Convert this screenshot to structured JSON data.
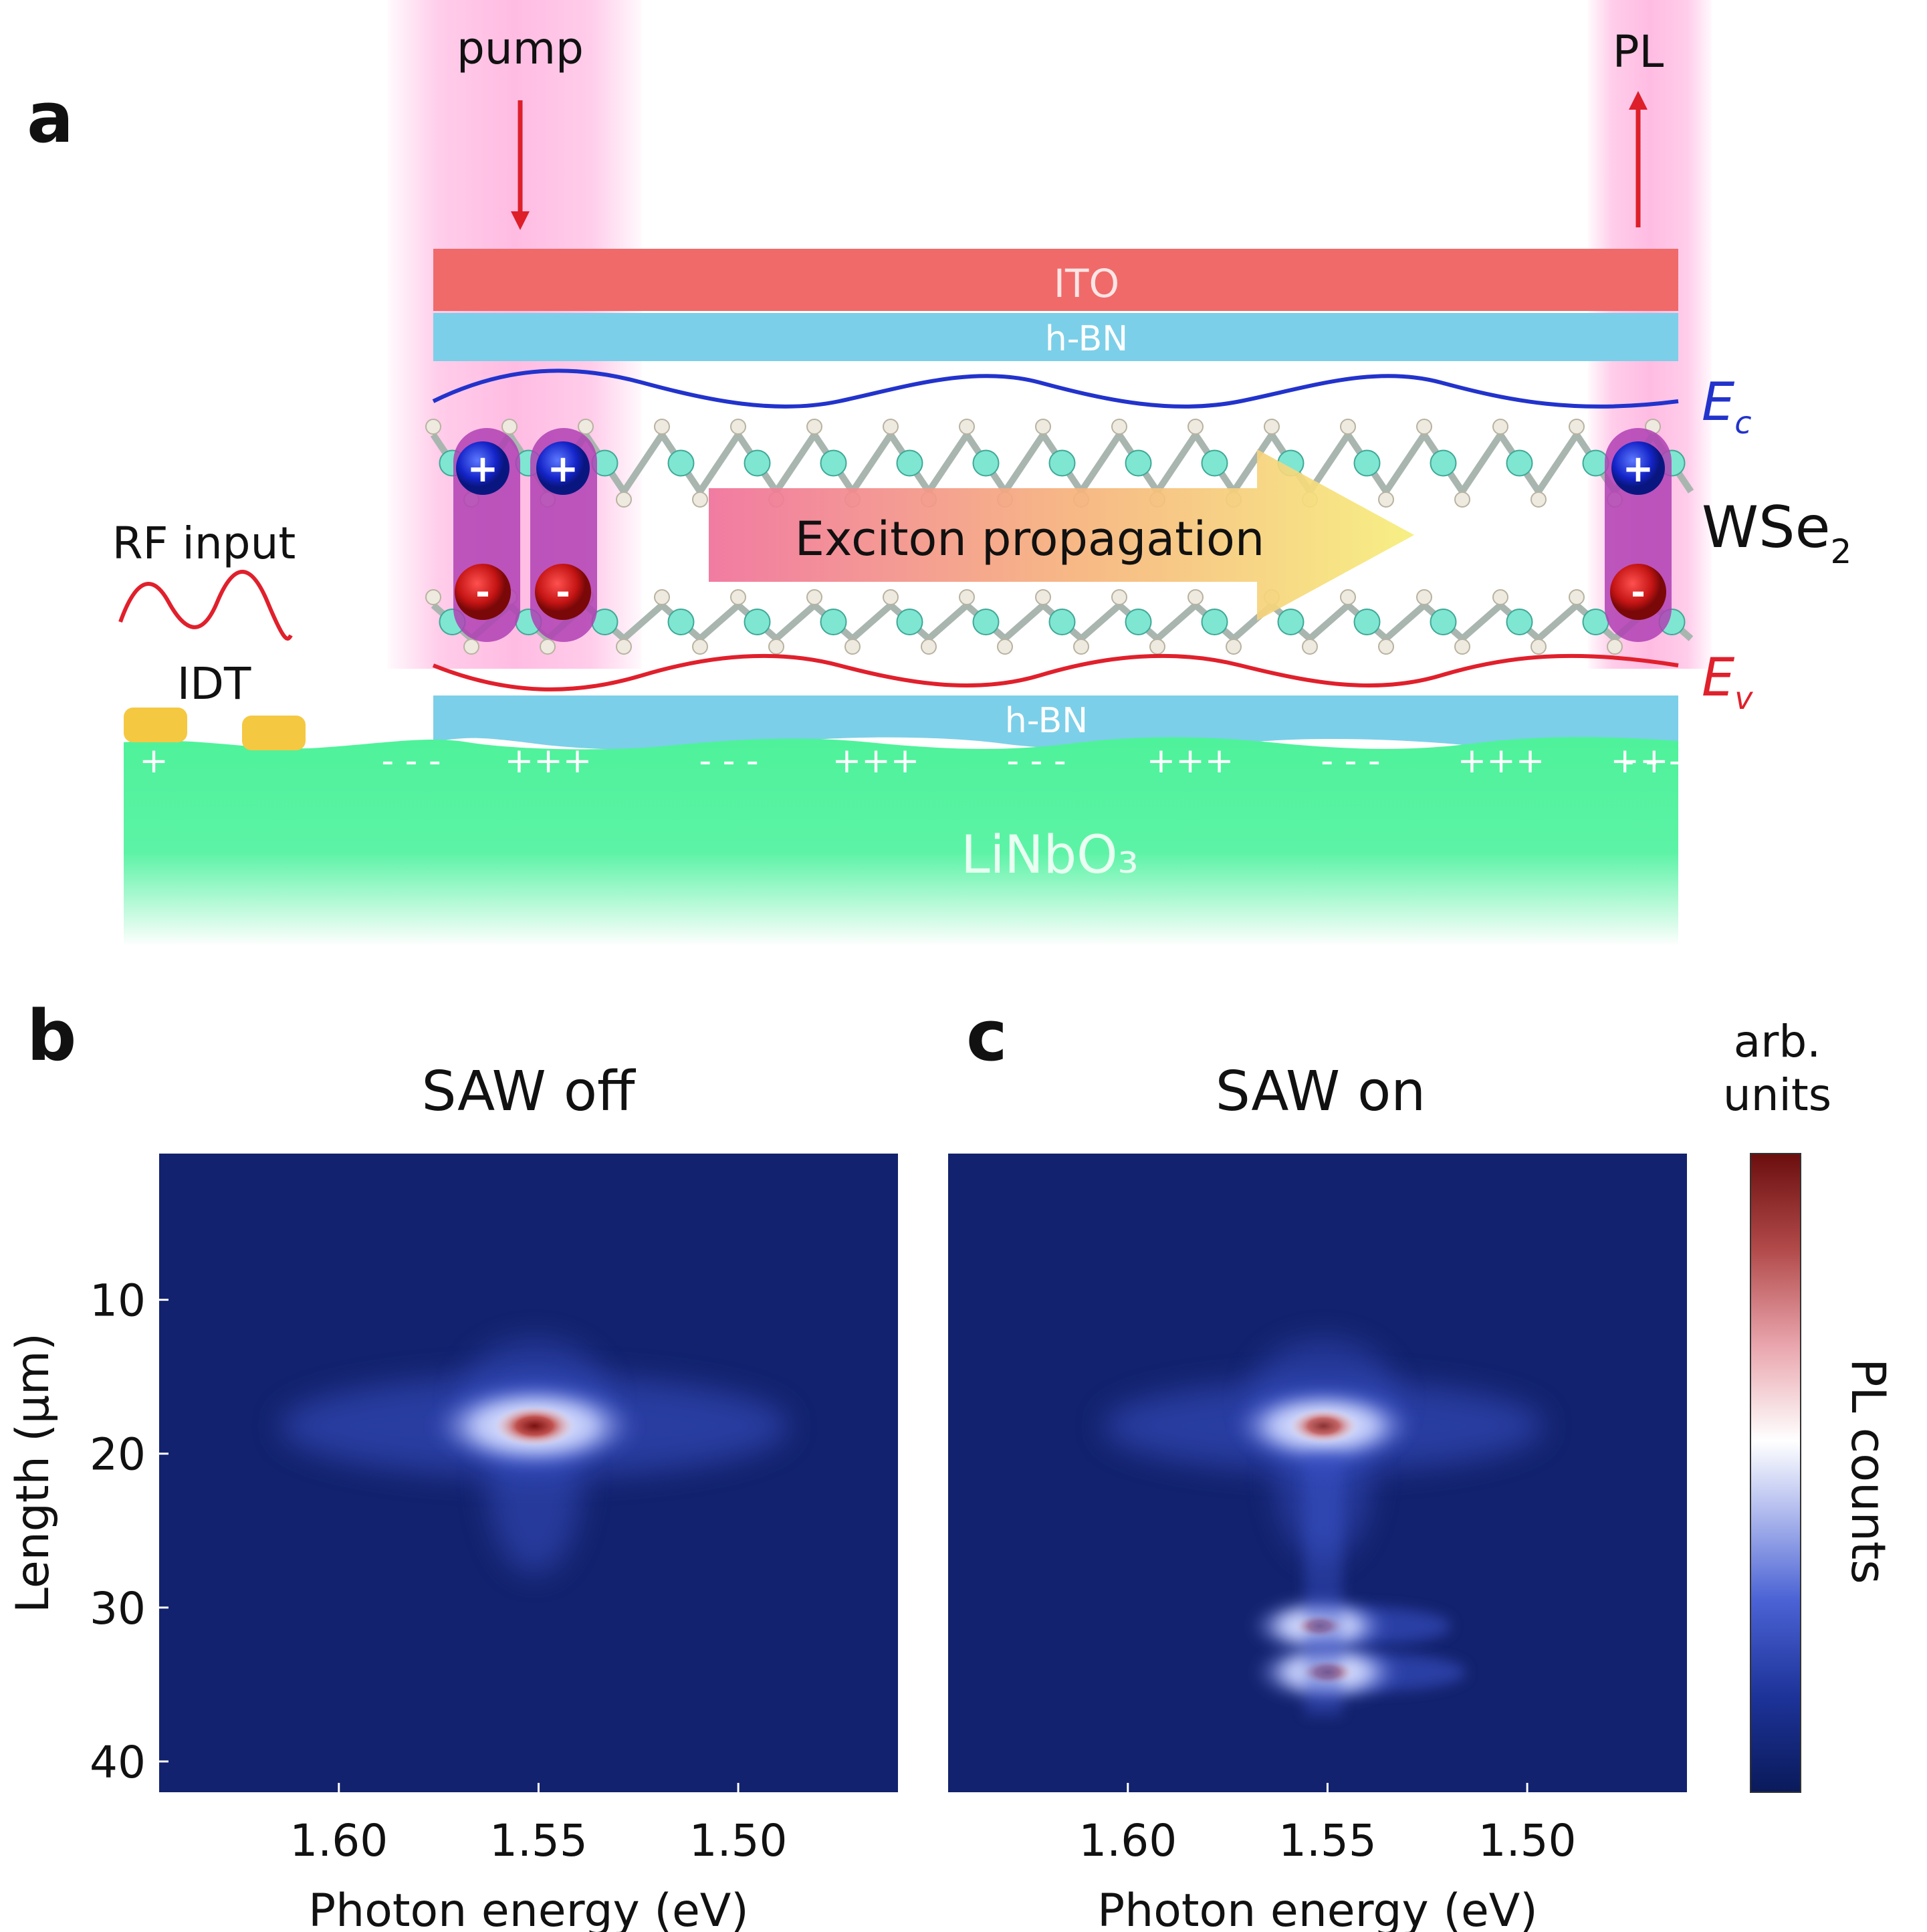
{
  "panel_a": {
    "label": "a",
    "pump": "pump",
    "pl": "PL",
    "ito": "ITO",
    "hbn_top": "h-BN",
    "hbn_bottom": "h-BN",
    "ec_main": "E",
    "ec_sub": "c",
    "ev_main": "E",
    "ev_sub": "v",
    "wse2_main": "WSe",
    "wse2_sub": "2",
    "propagation": "Exciton propagation",
    "rf_input": "RF input",
    "idt": "IDT",
    "substrate": "LiNbO₃",
    "hole_sign": "+",
    "electron_sign": "-",
    "charges": [
      "+",
      "- - -",
      "+++",
      "- - -",
      "+++",
      "- - -",
      "+++",
      "- - -",
      "+++",
      "- - -",
      "++"
    ]
  },
  "panel_b": {
    "label": "b",
    "title": "SAW off"
  },
  "panel_c": {
    "label": "c",
    "title": "SAW on"
  },
  "colorbar": {
    "units_line1": "arb.",
    "units_line2": "units",
    "label": "PL counts"
  },
  "colors": {
    "ito": "#f06a6a",
    "hbn": "#7ccfe8",
    "substrate": "#4ef29a",
    "ec": "#2233cc",
    "ev": "#e0202c",
    "arrow": "#dd1f2a",
    "map_bg": "#13226e",
    "idt": "#f5c842"
  },
  "chart_data": [
    {
      "type": "heatmap",
      "title": "SAW off",
      "xlabel": "Photon energy (eV)",
      "ylabel": "Length (μm)",
      "xticks": [
        "1.60",
        "1.55",
        "1.50"
      ],
      "yticks": [
        "10",
        "20",
        "30",
        "40"
      ],
      "xlim": [
        1.645,
        1.46
      ],
      "ylim": [
        0.5,
        42
      ],
      "colorbar_label": "PL counts",
      "colorbar_units": "arb. units",
      "peaks": [
        {
          "energy": 1.551,
          "length": 18.2,
          "intensity": 1.0
        }
      ]
    },
    {
      "type": "heatmap",
      "title": "SAW on",
      "xlabel": "Photon energy (eV)",
      "ylabel": "Length (μm)",
      "xticks": [
        "1.60",
        "1.55",
        "1.50"
      ],
      "yticks": [
        "10",
        "20",
        "30",
        "40"
      ],
      "xlim": [
        1.645,
        1.46
      ],
      "ylim": [
        0.5,
        42
      ],
      "colorbar_label": "PL counts",
      "colorbar_units": "arb. units",
      "peaks": [
        {
          "energy": 1.551,
          "length": 18.2,
          "intensity": 0.85
        },
        {
          "energy": 1.552,
          "length": 31.2,
          "intensity": 0.6
        },
        {
          "energy": 1.55,
          "length": 34.2,
          "intensity": 0.65
        }
      ]
    }
  ]
}
